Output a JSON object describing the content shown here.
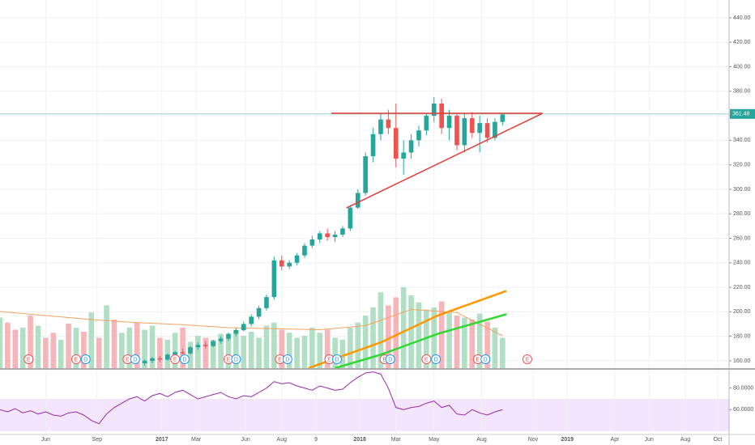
{
  "chart_data": {
    "type": "candlestick",
    "xlim": [
      0,
      191.5
    ],
    "xticks": [
      {
        "value": 12,
        "label": "Jun"
      },
      {
        "value": 25.5,
        "label": "Sep"
      },
      {
        "value": 42.5,
        "label": "2017"
      },
      {
        "value": 51.5,
        "label": "Mar"
      },
      {
        "value": 64.5,
        "label": "Jun"
      },
      {
        "value": 74,
        "label": "Aug"
      },
      {
        "value": 83,
        "label": "9"
      },
      {
        "value": 94.5,
        "label": "2018"
      },
      {
        "value": 104,
        "label": "Mar"
      },
      {
        "value": 114,
        "label": "May"
      },
      {
        "value": 126.5,
        "label": "Aug"
      },
      {
        "value": 140,
        "label": "Nov"
      },
      {
        "value": 149,
        "label": "2019"
      },
      {
        "value": 161.5,
        "label": "Apr"
      },
      {
        "value": 170.5,
        "label": "Jun"
      },
      {
        "value": 180,
        "label": "Aug"
      },
      {
        "value": 188.5,
        "label": "Oct"
      }
    ],
    "ylim": [
      154,
      454.5
    ],
    "yticks": [
      {
        "value": 160,
        "label": "160.00"
      },
      {
        "value": 180,
        "label": "180.00"
      },
      {
        "value": 200,
        "label": "200.00"
      },
      {
        "value": 220,
        "label": "220.00"
      },
      {
        "value": 240,
        "label": "240.00"
      },
      {
        "value": 260,
        "label": "260.00"
      },
      {
        "value": 280,
        "label": "280.00"
      },
      {
        "value": 300,
        "label": "300.00"
      },
      {
        "value": 320,
        "label": "320.00"
      },
      {
        "value": 340,
        "label": "340.00"
      },
      {
        "value": 360,
        "label": "360.00"
      },
      {
        "value": 380,
        "label": "380.00"
      },
      {
        "value": 400,
        "label": "400.00"
      },
      {
        "value": 420,
        "label": "420.00"
      },
      {
        "value": 440,
        "label": "440.00"
      }
    ],
    "grid": true,
    "up_color": "#26a69a",
    "down_color": "#ef5350",
    "candles": {
      "x": [
        38,
        40,
        42,
        44,
        46,
        48,
        50,
        52,
        54,
        56,
        58,
        60,
        62,
        64,
        66,
        68,
        70,
        72,
        74,
        76,
        78,
        80,
        82,
        84,
        86,
        88,
        90,
        92,
        94,
        96,
        98,
        100,
        102,
        104,
        106,
        108,
        110,
        112,
        114,
        116,
        118,
        120,
        122,
        124,
        126,
        128,
        130,
        132
      ],
      "open": [
        158,
        160,
        162,
        161,
        165,
        167,
        166,
        171,
        173,
        172,
        176,
        178,
        182,
        185,
        190,
        196,
        203,
        212,
        242,
        237,
        240,
        246,
        254,
        259,
        264,
        261,
        263,
        268,
        285,
        297,
        327,
        345,
        357,
        350,
        325,
        330,
        340,
        348,
        360,
        370,
        350,
        360,
        336,
        358,
        346,
        354,
        342,
        355
      ],
      "high": [
        161,
        163,
        164,
        166,
        168,
        170,
        172,
        175,
        176,
        177,
        180,
        183,
        187,
        192,
        198,
        205,
        214,
        245,
        246,
        242,
        248,
        256,
        262,
        266,
        268,
        266,
        270,
        287,
        300,
        330,
        350,
        362,
        365,
        370,
        340,
        345,
        352,
        362,
        375,
        374,
        365,
        362,
        362,
        363,
        360,
        358,
        358,
        362
      ],
      "low": [
        156,
        158,
        159,
        160,
        163,
        165,
        165,
        169,
        170,
        171,
        174,
        176,
        180,
        184,
        188,
        194,
        201,
        210,
        234,
        235,
        238,
        244,
        252,
        256,
        258,
        257,
        261,
        266,
        284,
        295,
        322,
        340,
        345,
        318,
        312,
        325,
        335,
        344,
        355,
        345,
        340,
        332,
        330,
        342,
        330,
        338,
        340,
        352
      ],
      "close": [
        160,
        162,
        161,
        165,
        167,
        166,
        171,
        173,
        172,
        176,
        178,
        182,
        185,
        190,
        196,
        203,
        212,
        242,
        237,
        240,
        246,
        254,
        259,
        264,
        261,
        263,
        268,
        285,
        297,
        327,
        345,
        357,
        350,
        325,
        330,
        340,
        348,
        360,
        370,
        350,
        360,
        336,
        358,
        346,
        354,
        342,
        355,
        361
      ]
    },
    "last_price": 361.48,
    "last_price_color": "#26a69a",
    "moving_averages": [
      {
        "color": "#ff9800",
        "x": [
          81,
          100,
          115,
          133
        ],
        "values": [
          154,
          175,
          197,
          217
        ]
      },
      {
        "color": "#30d930",
        "x": [
          88,
          100,
          115,
          133
        ],
        "values": [
          154,
          165,
          182,
          198
        ]
      }
    ],
    "trend_lines": [
      {
        "color": "#e53935",
        "x": [
          87,
          142.5
        ],
        "values": [
          362,
          362
        ]
      },
      {
        "color": "#e53935",
        "x": [
          91,
          142.5
        ],
        "values": [
          284.8,
          362
        ]
      }
    ],
    "volume": {
      "ylim": [
        0,
        100
      ],
      "up_color": "#a3d9b8",
      "down_color": "#f5a8ad",
      "x": [
        0,
        2,
        4,
        6,
        8,
        10,
        12,
        14,
        16,
        18,
        20,
        22,
        24,
        26,
        28,
        30,
        32,
        34,
        36,
        38,
        40,
        42,
        44,
        46,
        48,
        50,
        52,
        54,
        56,
        58,
        60,
        62,
        64,
        66,
        68,
        70,
        72,
        74,
        76,
        78,
        80,
        82,
        84,
        86,
        88,
        90,
        92,
        94,
        96,
        98,
        100,
        102,
        104,
        106,
        108,
        110,
        112,
        114,
        116,
        118,
        120,
        122,
        124,
        126,
        128,
        130,
        132
      ],
      "values": [
        50,
        45,
        38,
        40,
        52,
        42,
        30,
        35,
        28,
        44,
        40,
        36,
        55,
        30,
        62,
        48,
        35,
        40,
        45,
        38,
        42,
        30,
        28,
        35,
        40,
        26,
        32,
        30,
        28,
        34,
        30,
        38,
        32,
        36,
        30,
        42,
        45,
        38,
        35,
        30,
        32,
        40,
        35,
        38,
        30,
        28,
        40,
        45,
        52,
        60,
        75,
        62,
        70,
        80,
        72,
        65,
        58,
        60,
        66,
        55,
        52,
        50,
        48,
        54,
        46,
        40,
        30
      ],
      "up": [
        true,
        false,
        false,
        true,
        false,
        true,
        false,
        false,
        true,
        false,
        true,
        false,
        true,
        false,
        true,
        false,
        true,
        true,
        false,
        true,
        true,
        false,
        true,
        true,
        false,
        true,
        true,
        false,
        true,
        true,
        true,
        true,
        true,
        true,
        true,
        true,
        true,
        false,
        true,
        true,
        true,
        true,
        true,
        false,
        true,
        true,
        true,
        true,
        true,
        true,
        true,
        false,
        false,
        true,
        true,
        true,
        true,
        true,
        false,
        true,
        false,
        true,
        false,
        true,
        false,
        true,
        true
      ],
      "ma": {
        "color": "#f4a261",
        "x": [
          0,
          12,
          24,
          36,
          48,
          60,
          72,
          84,
          96,
          108,
          120,
          132
        ],
        "values": [
          56,
          52,
          48,
          45,
          43,
          40,
          39,
          38,
          42,
          58,
          55,
          32
        ]
      }
    },
    "events": [
      {
        "x": 7.5,
        "label": "E"
      },
      {
        "x": 20,
        "label": "E"
      },
      {
        "x": 22.5,
        "label": "D"
      },
      {
        "x": 33.5,
        "label": "E"
      },
      {
        "x": 35.5,
        "label": "D"
      },
      {
        "x": 46,
        "label": "E"
      },
      {
        "x": 48.5,
        "label": "D"
      },
      {
        "x": 60,
        "label": "E"
      },
      {
        "x": 62,
        "label": "D"
      },
      {
        "x": 73.5,
        "label": "E"
      },
      {
        "x": 75.5,
        "label": "D"
      },
      {
        "x": 86.5,
        "label": "E"
      },
      {
        "x": 88.5,
        "label": "D"
      },
      {
        "x": 101,
        "label": "E"
      },
      {
        "x": 102.5,
        "label": "D"
      },
      {
        "x": 112,
        "label": "E"
      },
      {
        "x": 114.5,
        "label": "D"
      },
      {
        "x": 125.5,
        "label": "E"
      },
      {
        "x": 127.5,
        "label": "D"
      },
      {
        "x": 138.5,
        "label": "E"
      }
    ],
    "rsi": {
      "color": "#9c27b0",
      "band": [
        40,
        70
      ],
      "band_color": "#f3e5fb",
      "ylim": [
        37,
        97
      ],
      "yticks": [
        {
          "value": 80,
          "label": "80.0000"
        },
        {
          "value": 60,
          "label": "60.0000"
        }
      ],
      "x": [
        0,
        2,
        4,
        6,
        8,
        10,
        12,
        14,
        16,
        18,
        20,
        22,
        24,
        26,
        28,
        30,
        32,
        34,
        36,
        38,
        40,
        42,
        44,
        46,
        48,
        50,
        52,
        54,
        56,
        58,
        60,
        62,
        64,
        66,
        68,
        70,
        72,
        74,
        76,
        78,
        80,
        82,
        84,
        86,
        88,
        90,
        92,
        94,
        96,
        98,
        100,
        102,
        104,
        106,
        108,
        110,
        112,
        114,
        116,
        118,
        120,
        122,
        124,
        126,
        128,
        130,
        132
      ],
      "values": [
        60,
        58,
        61,
        57,
        59,
        56,
        58,
        55,
        54,
        57,
        58,
        55,
        50,
        47,
        56,
        62,
        66,
        70,
        72,
        68,
        73,
        75,
        72,
        76,
        78,
        74,
        70,
        72,
        74,
        76,
        72,
        70,
        73,
        72,
        76,
        80,
        86,
        84,
        85,
        82,
        80,
        78,
        82,
        80,
        78,
        79,
        85,
        90,
        94,
        95,
        93,
        80,
        62,
        60,
        62,
        63,
        66,
        68,
        62,
        64,
        56,
        55,
        60,
        57,
        55,
        58,
        60
      ]
    }
  }
}
